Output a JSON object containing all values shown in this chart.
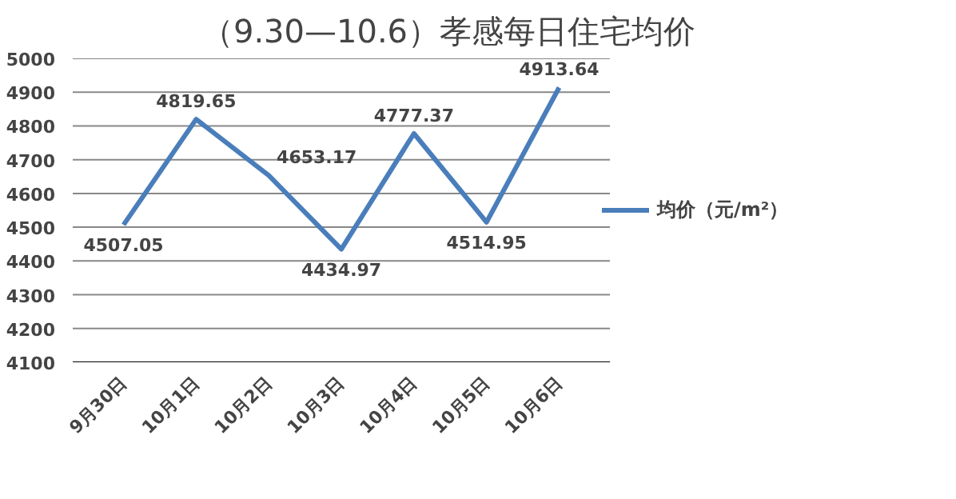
{
  "chart_data": {
    "type": "line",
    "title": "（9.30—10.6）孝感每日住宅均价",
    "categories": [
      "9月30日",
      "10月1日",
      "10月2日",
      "10月3日",
      "10月4日",
      "10月5日",
      "10月6日"
    ],
    "series": [
      {
        "name": "均价（元/m²）",
        "color": "#4a7ebb",
        "values": [
          4507.05,
          4819.65,
          4653.17,
          4434.97,
          4777.37,
          4514.95,
          4913.64
        ]
      }
    ],
    "ylim": [
      4100,
      5000
    ],
    "yticks": [
      4100,
      4200,
      4300,
      4400,
      4500,
      4600,
      4700,
      4800,
      4900,
      5000
    ],
    "grid": "y",
    "legend": "right",
    "data_labels": true,
    "marker": "none",
    "line_style": "solid"
  }
}
